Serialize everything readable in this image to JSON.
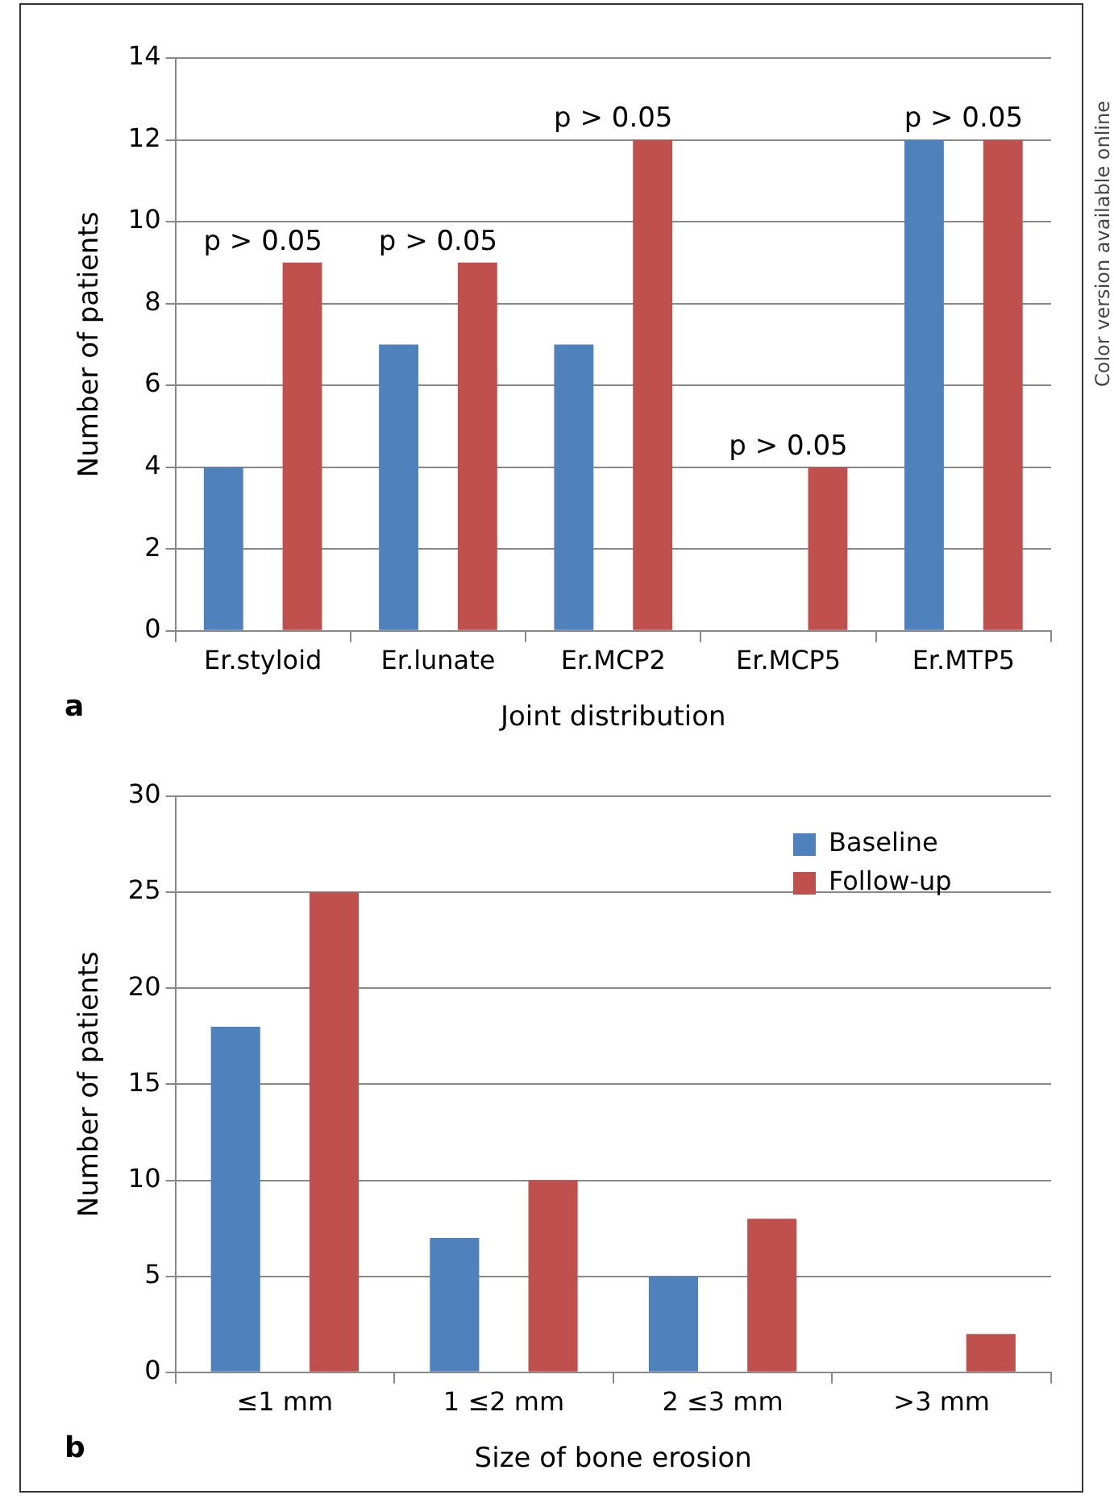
{
  "chart_data": [
    {
      "type": "bar",
      "categories": [
        "Er.styloid",
        "Er.lunate",
        "Er.MCP2",
        "Er.MCP5",
        "Er.MTP5"
      ],
      "xlabel": "Joint distribution",
      "ylabel": "Number of patients",
      "ylim": [
        0,
        14
      ],
      "yticks": [
        0,
        2,
        4,
        6,
        8,
        10,
        12,
        14
      ],
      "grid": "y",
      "legend": false,
      "series": [
        {
          "color": "#4f81bd",
          "values": [
            4,
            7,
            7,
            0,
            12
          ]
        },
        {
          "color": "#c0504d",
          "values": [
            9,
            9,
            12,
            4,
            12
          ]
        }
      ],
      "annotations": [
        "p > 0.05",
        "p > 0.05",
        "p > 0.05",
        "p > 0.05",
        "p > 0.05",
        "a",
        "Color version available online"
      ]
    },
    {
      "type": "bar",
      "categories": [
        "≤1 mm",
        "1 ≤2 mm",
        "2 ≤3 mm",
        ">3 mm"
      ],
      "xlabel": "Size of bone erosion",
      "ylabel": "Number of patients",
      "ylim": [
        0,
        30
      ],
      "yticks": [
        0,
        5,
        10,
        15,
        20,
        25,
        30
      ],
      "grid": "y",
      "legend": "top right",
      "series": [
        {
          "name": "Baseline",
          "color": "#4f81bd",
          "values": [
            18,
            7,
            5,
            0
          ]
        },
        {
          "name": "Follow-up",
          "color": "#c0504d",
          "values": [
            25,
            10,
            8,
            2
          ]
        }
      ],
      "annotations": [
        "b"
      ]
    }
  ]
}
